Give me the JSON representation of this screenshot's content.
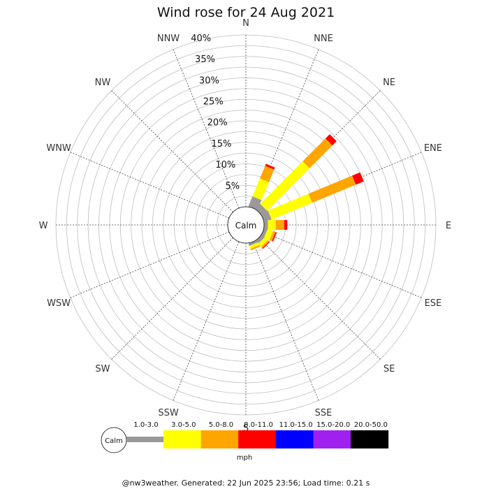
{
  "chart_data": {
    "type": "wind-rose",
    "title": "Wind rose for 24 Aug 2021",
    "directions": [
      "N",
      "NNE",
      "NE",
      "ENE",
      "E",
      "ESE",
      "SE",
      "SSE",
      "S",
      "SSW",
      "SW",
      "WSW",
      "W",
      "WNW",
      "NW",
      "NNW"
    ],
    "radial_ticks": [
      "5%",
      "10%",
      "15%",
      "20%",
      "25%",
      "30%",
      "35%",
      "40%"
    ],
    "radial_max": 40,
    "calm_label": "Calm",
    "units": "mph",
    "speed_bins": [
      {
        "name": "1.0-3.0",
        "color": "#999999"
      },
      {
        "name": "3.0-5.0",
        "color": "#ffff00"
      },
      {
        "name": "5.0-8.0",
        "color": "#ffa500"
      },
      {
        "name": "8.0-11.0",
        "color": "#ff0000"
      },
      {
        "name": "11.0-15.0",
        "color": "#0000ff"
      },
      {
        "name": "15.0-20.0",
        "color": "#a020f0"
      },
      {
        "name": "20.0-50.0",
        "color": "#000000"
      }
    ],
    "series": [
      {
        "direction": "NNE",
        "values": [
          2.5,
          4.5,
          3.2,
          0.5,
          0,
          0,
          0
        ]
      },
      {
        "direction": "NE",
        "values": [
          1.6,
          14.0,
          7.5,
          1.4,
          0,
          0,
          0
        ]
      },
      {
        "direction": "ENE",
        "values": [
          1.8,
          10.2,
          11.0,
          2.0,
          0,
          0,
          0
        ]
      },
      {
        "direction": "E",
        "values": [
          0.9,
          1.8,
          2.0,
          0.7,
          0,
          0,
          0
        ]
      },
      {
        "direction": "ESE",
        "values": [
          0.8,
          1.4,
          0.6,
          0.3,
          0,
          0,
          0
        ]
      },
      {
        "direction": "SE",
        "values": [
          0.9,
          1.0,
          0.4,
          0.2,
          0,
          0,
          0
        ]
      },
      {
        "direction": "SSE",
        "values": [
          0.6,
          0.7,
          0.4,
          0,
          0,
          0,
          0
        ]
      }
    ]
  },
  "footer": "@nw3weather. Generated: 22 Jun 2025 23:56; Load time: 0.21 s"
}
